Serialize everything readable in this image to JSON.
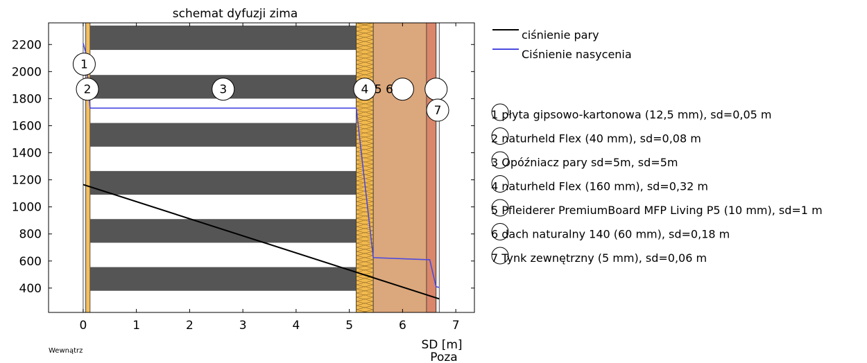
{
  "chart_data": {
    "type": "line",
    "title": "schemat dyfuzji zima",
    "xlabel": "SD [m]",
    "ylabel": "",
    "inside_label": "Wewnątrz",
    "outside_label": "Poza",
    "xlim": [
      -0.65,
      7.35
    ],
    "ylim": [
      220,
      2360
    ],
    "xticks": [
      0,
      1,
      2,
      3,
      4,
      5,
      6,
      7
    ],
    "yticks": [
      400,
      600,
      800,
      1000,
      1200,
      1400,
      1600,
      1800,
      2000,
      2200
    ],
    "grid": false,
    "legend_position": "outside-right",
    "series": [
      {
        "name": "ciśnienie pary",
        "color": "#000000",
        "x": [
          0,
          6.69
        ],
        "y": [
          1165,
          320
        ]
      },
      {
        "name": "Ciśnienie nasycenia",
        "color": "#4a4ae0",
        "x": [
          0,
          0.05,
          0.13,
          5.13,
          5.45,
          6.45,
          6.51,
          6.63,
          6.69
        ],
        "y": [
          2210,
          2140,
          1730,
          1730,
          625,
          610,
          610,
          410,
          405
        ]
      }
    ],
    "layers": [
      {
        "num": "1",
        "label": "płyta gipsowo-kartonowa (12,5 mm), sd=0,05 m",
        "x0": 0,
        "x1": 0.05,
        "fill": "#f0f0f0",
        "pattern": "plain"
      },
      {
        "num": "2",
        "label": "naturheld Flex (40 mm), sd=0,08 m",
        "x0": 0.05,
        "x1": 0.13,
        "fill": "#f5c060",
        "pattern": "plain"
      },
      {
        "num": "3",
        "label": "Opóźniacz pary sd=5m, sd=5m",
        "x0": 0.13,
        "x1": 5.13,
        "fill": "#ffffff",
        "pattern": "stripes"
      },
      {
        "num": "4",
        "label": "naturheld Flex (160 mm), sd=0,32 m",
        "x0": 5.13,
        "x1": 5.45,
        "fill": "#f2b94e",
        "pattern": "insulation"
      },
      {
        "num": "5",
        "label": "Pfleiderer PremiumBoard MFP Living P5 (10 mm), sd=1 m",
        "x0": 5.45,
        "x1": 6.45,
        "fill": "#dba77c",
        "pattern": "plain"
      },
      {
        "num": "6",
        "label": "dach naturalny 140 (60 mm), sd=0,18 m",
        "x0": 6.45,
        "x1": 6.63,
        "fill": "#d9866a",
        "pattern": "plain"
      },
      {
        "num": "7",
        "label": "Tynk zewnętrzny (5 mm), sd=0,06 m",
        "x0": 6.63,
        "x1": 6.69,
        "fill": "#f0f0f0",
        "pattern": "plain"
      }
    ],
    "stripes": [
      {
        "y0": 2160,
        "y1": 2340
      },
      {
        "y0": 1800,
        "y1": 1975
      },
      {
        "y0": 1445,
        "y1": 1620
      },
      {
        "y0": 1090,
        "y1": 1265
      },
      {
        "y0": 735,
        "y1": 910
      },
      {
        "y0": 380,
        "y1": 555
      }
    ],
    "stripe_color": "#555555",
    "circle_markers": [
      {
        "num": "1",
        "x": 0.02,
        "y": 2055,
        "show": true
      },
      {
        "num": "2",
        "x": 0.08,
        "y": 1870,
        "show": true
      },
      {
        "num": "3",
        "x": 2.63,
        "y": 1870,
        "show": true
      },
      {
        "num": "4",
        "x": 5.29,
        "y": 1870,
        "show": true
      },
      {
        "num": "",
        "x": 6.0,
        "y": 1870,
        "show": false
      },
      {
        "num": "",
        "x": 6.63,
        "y": 1870,
        "show": false
      },
      {
        "num": "7",
        "x": 6.66,
        "y": 1715,
        "show": true
      }
    ],
    "marker_extra_text": "5 6"
  }
}
